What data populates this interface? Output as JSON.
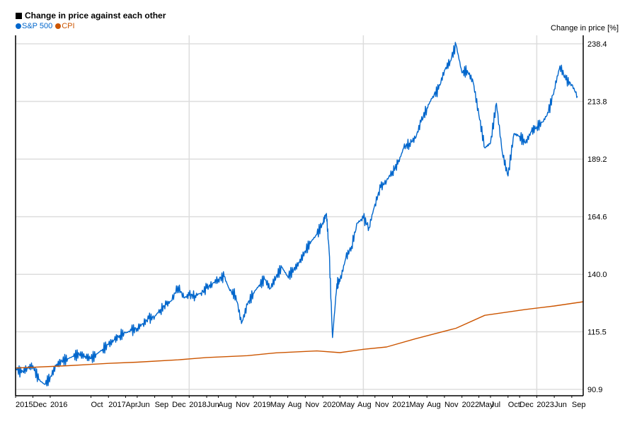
{
  "chart_data": {
    "type": "line",
    "title": "Change in price against each other",
    "ylabel": "Change in price [%]",
    "xlabel": "",
    "ylim": [
      90.9,
      238.4
    ],
    "y_ticks": [
      90.9,
      115.5,
      140.0,
      164.6,
      189.2,
      213.8,
      238.4
    ],
    "y_tick_labels": [
      "90.9",
      "115.5",
      "140.0",
      "164.6",
      "189.2",
      "213.8",
      "238.4"
    ],
    "x_range": [
      "2015-09-01",
      "2023-10-31"
    ],
    "x_ticks": [
      {
        "date": "2015-09-01",
        "label": "2015"
      },
      {
        "date": "2015-12-01",
        "label": "Dec"
      },
      {
        "date": "2016-03-01",
        "label": "2016"
      },
      {
        "date": "2016-10-01",
        "label": "Oct"
      },
      {
        "date": "2017-01-01",
        "label": "2017"
      },
      {
        "date": "2017-04-01",
        "label": "Apr"
      },
      {
        "date": "2017-06-01",
        "label": "Jun"
      },
      {
        "date": "2017-09-01",
        "label": "Sep"
      },
      {
        "date": "2017-12-01",
        "label": "Dec"
      },
      {
        "date": "2018-03-01",
        "label": "2018"
      },
      {
        "date": "2018-06-01",
        "label": "Jun"
      },
      {
        "date": "2018-08-01",
        "label": "Aug"
      },
      {
        "date": "2018-11-01",
        "label": "Nov"
      },
      {
        "date": "2019-02-01",
        "label": "2019"
      },
      {
        "date": "2019-05-01",
        "label": "May"
      },
      {
        "date": "2019-08-01",
        "label": "Aug"
      },
      {
        "date": "2019-11-01",
        "label": "Nov"
      },
      {
        "date": "2020-02-01",
        "label": "2020"
      },
      {
        "date": "2020-05-01",
        "label": "May"
      },
      {
        "date": "2020-08-01",
        "label": "Aug"
      },
      {
        "date": "2020-11-01",
        "label": "Nov"
      },
      {
        "date": "2021-02-01",
        "label": "2021"
      },
      {
        "date": "2021-05-01",
        "label": "May"
      },
      {
        "date": "2021-08-01",
        "label": "Aug"
      },
      {
        "date": "2021-11-01",
        "label": "Nov"
      },
      {
        "date": "2022-02-01",
        "label": "2022"
      },
      {
        "date": "2022-05-01",
        "label": "May"
      },
      {
        "date": "2022-07-01",
        "label": "Jul"
      },
      {
        "date": "2022-10-01",
        "label": "Oct"
      },
      {
        "date": "2022-12-01",
        "label": "Dec"
      },
      {
        "date": "2023-03-01",
        "label": "2023"
      },
      {
        "date": "2023-06-01",
        "label": "Jun"
      },
      {
        "date": "2023-09-01",
        "label": "Sep"
      }
    ],
    "x_gridlines": [
      "2015-09-01",
      "2018-03-01",
      "2020-09-01",
      "2023-03-01"
    ],
    "grid": true,
    "legend": "top-left",
    "series": [
      {
        "name": "S&P 500",
        "color": "#0066cc",
        "points": [
          [
            "2015-09-01",
            100
          ],
          [
            "2015-10-01",
            98
          ],
          [
            "2015-11-01",
            100
          ],
          [
            "2015-12-01",
            101
          ],
          [
            "2016-01-01",
            95
          ],
          [
            "2016-02-01",
            93
          ],
          [
            "2016-03-01",
            96
          ],
          [
            "2016-04-01",
            101
          ],
          [
            "2016-05-01",
            103
          ],
          [
            "2016-06-01",
            104
          ],
          [
            "2016-07-01",
            105
          ],
          [
            "2016-08-01",
            106
          ],
          [
            "2016-09-01",
            105
          ],
          [
            "2016-10-01",
            104
          ],
          [
            "2016-11-01",
            106
          ],
          [
            "2016-12-01",
            108
          ],
          [
            "2017-01-01",
            110
          ],
          [
            "2017-02-01",
            112
          ],
          [
            "2017-03-01",
            114
          ],
          [
            "2017-04-01",
            115
          ],
          [
            "2017-05-01",
            116
          ],
          [
            "2017-06-01",
            117
          ],
          [
            "2017-07-01",
            119
          ],
          [
            "2017-08-01",
            121
          ],
          [
            "2017-09-01",
            122
          ],
          [
            "2017-10-01",
            125
          ],
          [
            "2017-11-01",
            127
          ],
          [
            "2017-12-01",
            129
          ],
          [
            "2018-01-01",
            135
          ],
          [
            "2018-02-01",
            130
          ],
          [
            "2018-03-01",
            131
          ],
          [
            "2018-04-01",
            131
          ],
          [
            "2018-05-01",
            132
          ],
          [
            "2018-06-01",
            134
          ],
          [
            "2018-07-01",
            136
          ],
          [
            "2018-08-01",
            138
          ],
          [
            "2018-09-01",
            139
          ],
          [
            "2018-10-01",
            133
          ],
          [
            "2018-11-01",
            131
          ],
          [
            "2018-12-01",
            119
          ],
          [
            "2019-01-01",
            127
          ],
          [
            "2019-02-01",
            132
          ],
          [
            "2019-03-01",
            135
          ],
          [
            "2019-04-01",
            138
          ],
          [
            "2019-05-01",
            134
          ],
          [
            "2019-06-01",
            139
          ],
          [
            "2019-07-01",
            143
          ],
          [
            "2019-08-01",
            139
          ],
          [
            "2019-09-01",
            142
          ],
          [
            "2019-10-01",
            145
          ],
          [
            "2019-11-01",
            150
          ],
          [
            "2019-12-01",
            154
          ],
          [
            "2020-01-01",
            157
          ],
          [
            "2020-02-01",
            162
          ],
          [
            "2020-02-20",
            166
          ],
          [
            "2020-03-05",
            150
          ],
          [
            "2020-03-23",
            113
          ],
          [
            "2020-04-15",
            136
          ],
          [
            "2020-05-01",
            137
          ],
          [
            "2020-06-01",
            147
          ],
          [
            "2020-07-01",
            152
          ],
          [
            "2020-08-01",
            162
          ],
          [
            "2020-09-01",
            164
          ],
          [
            "2020-10-01",
            160
          ],
          [
            "2020-11-01",
            170
          ],
          [
            "2020-12-01",
            177
          ],
          [
            "2021-01-01",
            180
          ],
          [
            "2021-02-01",
            184
          ],
          [
            "2021-03-01",
            187
          ],
          [
            "2021-04-01",
            194
          ],
          [
            "2021-05-01",
            196
          ],
          [
            "2021-06-01",
            198
          ],
          [
            "2021-07-01",
            205
          ],
          [
            "2021-08-01",
            211
          ],
          [
            "2021-09-01",
            216
          ],
          [
            "2021-10-01",
            219
          ],
          [
            "2021-11-01",
            227
          ],
          [
            "2021-12-01",
            231
          ],
          [
            "2022-01-01",
            238
          ],
          [
            "2022-02-01",
            226
          ],
          [
            "2022-03-01",
            227
          ],
          [
            "2022-04-01",
            222
          ],
          [
            "2022-05-01",
            208
          ],
          [
            "2022-06-01",
            194
          ],
          [
            "2022-07-01",
            196
          ],
          [
            "2022-08-01",
            213
          ],
          [
            "2022-09-01",
            192
          ],
          [
            "2022-10-01",
            182
          ],
          [
            "2022-11-01",
            200
          ],
          [
            "2022-12-01",
            199
          ],
          [
            "2023-01-01",
            196
          ],
          [
            "2023-02-01",
            201
          ],
          [
            "2023-03-01",
            203
          ],
          [
            "2023-04-01",
            205
          ],
          [
            "2023-05-01",
            209
          ],
          [
            "2023-06-01",
            219
          ],
          [
            "2023-07-01",
            229
          ],
          [
            "2023-08-01",
            223
          ],
          [
            "2023-09-01",
            221
          ],
          [
            "2023-10-01",
            216
          ]
        ]
      },
      {
        "name": "CPI",
        "color": "#cc5500",
        "points": [
          [
            "2015-09-01",
            100
          ],
          [
            "2016-06-01",
            101
          ],
          [
            "2017-01-01",
            102
          ],
          [
            "2017-06-01",
            102.5
          ],
          [
            "2018-01-01",
            103.5
          ],
          [
            "2018-06-01",
            104.5
          ],
          [
            "2019-01-01",
            105.3
          ],
          [
            "2019-06-01",
            106.5
          ],
          [
            "2020-01-01",
            107.3
          ],
          [
            "2020-05-01",
            106.6
          ],
          [
            "2020-09-01",
            108
          ],
          [
            "2021-01-01",
            109
          ],
          [
            "2021-06-01",
            112.5
          ],
          [
            "2022-01-01",
            117
          ],
          [
            "2022-06-01",
            122.5
          ],
          [
            "2023-01-01",
            125
          ],
          [
            "2023-06-01",
            126.5
          ],
          [
            "2023-10-31",
            128.3
          ]
        ]
      }
    ]
  }
}
